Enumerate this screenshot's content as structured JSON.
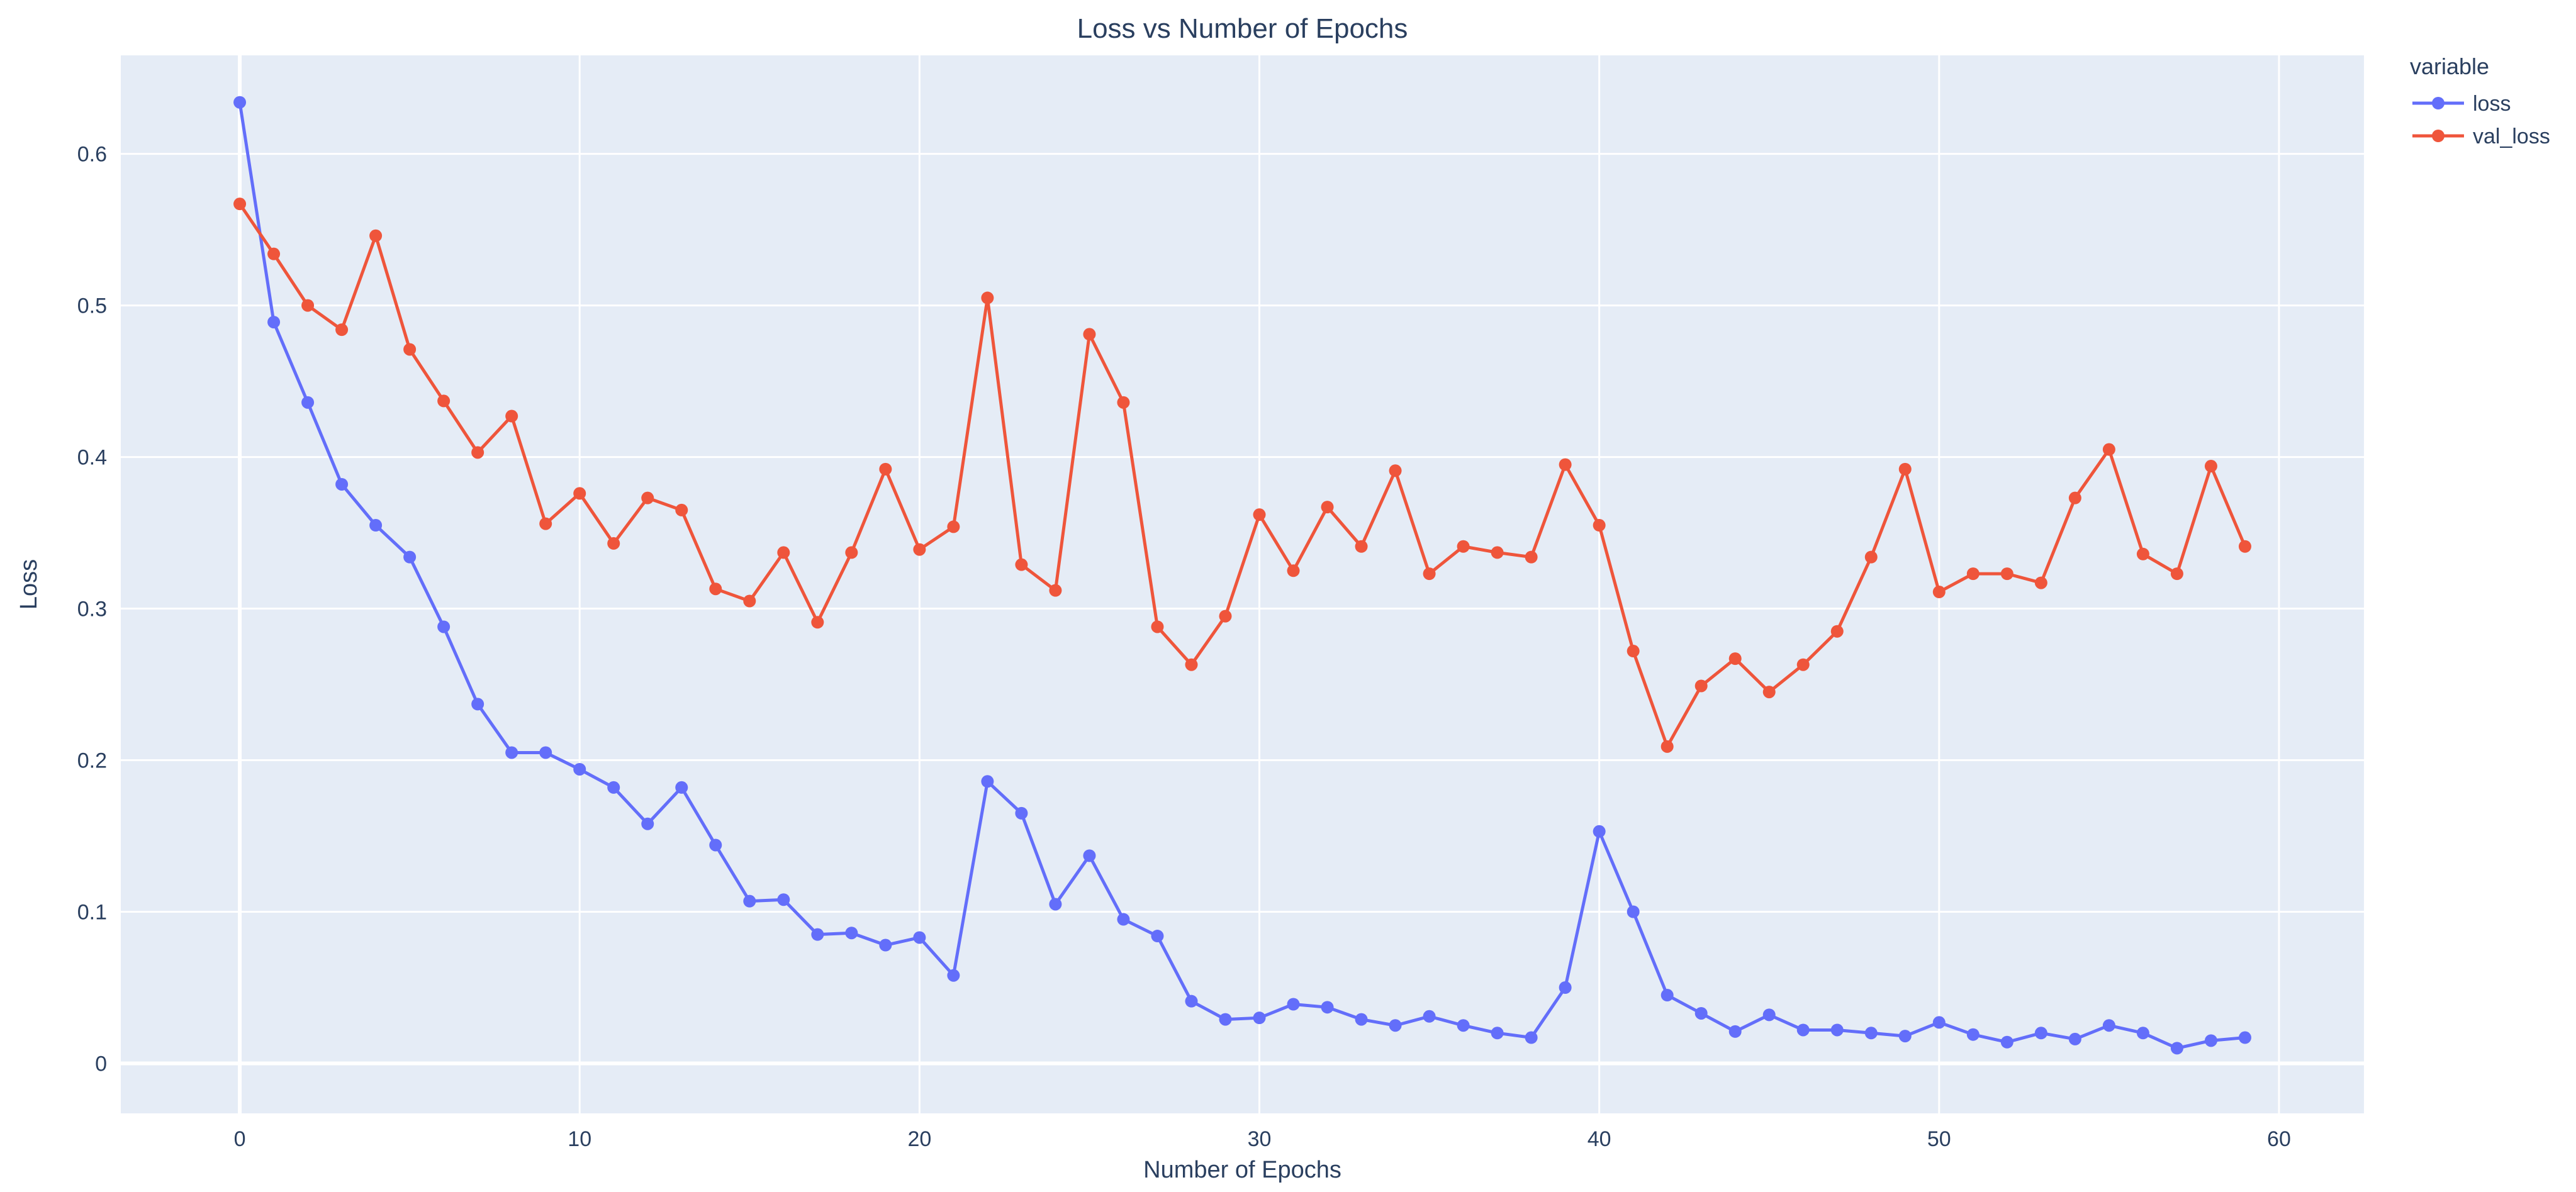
{
  "chart_data": {
    "type": "line",
    "title": "Loss vs Number of Epochs",
    "xlabel": "Number of Epochs",
    "ylabel": "Loss",
    "xlim": [
      -3.5,
      62.5
    ],
    "ylim": [
      -0.033,
      0.665
    ],
    "xticks": [
      0,
      10,
      20,
      30,
      40,
      50,
      60
    ],
    "yticks": [
      0,
      0.1,
      0.2,
      0.3,
      0.4,
      0.5,
      0.6
    ],
    "ytick_labels": [
      "0",
      "0.1",
      "0.2",
      "0.3",
      "0.4",
      "0.5",
      "0.6"
    ],
    "xtick_labels": [
      "0",
      "10",
      "20",
      "30",
      "40",
      "50",
      "60"
    ],
    "grid": true,
    "legend": {
      "title": "variable",
      "placement": "right"
    },
    "background": "#e5ecf6",
    "x": [
      0,
      1,
      2,
      3,
      4,
      5,
      6,
      7,
      8,
      9,
      10,
      11,
      12,
      13,
      14,
      15,
      16,
      17,
      18,
      19,
      20,
      21,
      22,
      23,
      24,
      25,
      26,
      27,
      28,
      29,
      30,
      31,
      32,
      33,
      34,
      35,
      36,
      37,
      38,
      39,
      40,
      41,
      42,
      43,
      44,
      45,
      46,
      47,
      48,
      49,
      50,
      51,
      52,
      53,
      54,
      55,
      56,
      57,
      58,
      59
    ],
    "series": [
      {
        "name": "loss",
        "color": "#636efa",
        "values": [
          0.634,
          0.489,
          0.436,
          0.382,
          0.355,
          0.334,
          0.288,
          0.237,
          0.205,
          0.205,
          0.194,
          0.182,
          0.158,
          0.182,
          0.144,
          0.107,
          0.108,
          0.085,
          0.086,
          0.078,
          0.083,
          0.058,
          0.186,
          0.165,
          0.105,
          0.137,
          0.095,
          0.084,
          0.041,
          0.029,
          0.03,
          0.039,
          0.037,
          0.029,
          0.025,
          0.031,
          0.025,
          0.02,
          0.017,
          0.05,
          0.153,
          0.1,
          0.045,
          0.033,
          0.021,
          0.032,
          0.022,
          0.022,
          0.02,
          0.018,
          0.027,
          0.019,
          0.014,
          0.02,
          0.016,
          0.025,
          0.02,
          0.01,
          0.015,
          0.017
        ]
      },
      {
        "name": "val_loss",
        "color": "#ef553b",
        "values": [
          0.567,
          0.534,
          0.5,
          0.484,
          0.546,
          0.471,
          0.437,
          0.403,
          0.427,
          0.356,
          0.376,
          0.343,
          0.373,
          0.365,
          0.313,
          0.305,
          0.337,
          0.291,
          0.337,
          0.392,
          0.339,
          0.354,
          0.505,
          0.329,
          0.312,
          0.481,
          0.436,
          0.288,
          0.263,
          0.295,
          0.362,
          0.325,
          0.367,
          0.341,
          0.391,
          0.323,
          0.341,
          0.337,
          0.334,
          0.395,
          0.355,
          0.272,
          0.209,
          0.249,
          0.267,
          0.245,
          0.263,
          0.285,
          0.334,
          0.392,
          0.311,
          0.323,
          0.323,
          0.317,
          0.373,
          0.405,
          0.336,
          0.323,
          0.394,
          0.341
        ]
      }
    ]
  },
  "colors": {
    "plot_background": "#e5ecf6",
    "gridline": "#ffffff",
    "text": "#2a3f5f"
  }
}
